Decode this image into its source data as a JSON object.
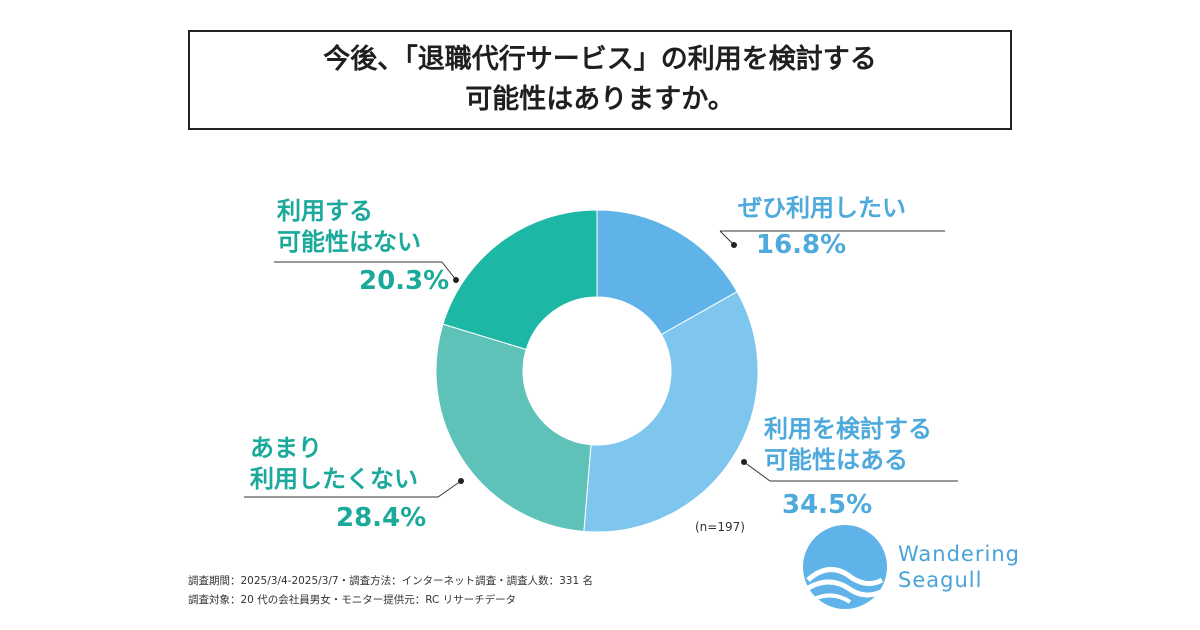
{
  "title": {
    "line1": "今後、「退職代行サービス」の利用を検討する",
    "line2": "可能性はありますか。"
  },
  "chart_data": {
    "type": "pie",
    "sample_note": "(n=197)",
    "slices": [
      {
        "label_lines": [
          "ぜひ利用したい"
        ],
        "value": 16.8,
        "pct": "16.8%",
        "color": "#5fb3e8"
      },
      {
        "label_lines": [
          "利用を検討する",
          "可能性はある"
        ],
        "value": 34.5,
        "pct": "34.5%",
        "color": "#7fc6ee"
      },
      {
        "label_lines": [
          "あまり",
          "利用したくない"
        ],
        "value": 28.4,
        "pct": "28.4%",
        "color": "#5ec2b9"
      },
      {
        "label_lines": [
          "利用する",
          "可能性はない"
        ],
        "value": 20.3,
        "pct": "20.3%",
        "color": "#1db7a5"
      }
    ]
  },
  "footer": {
    "line1": "調査期間：2025/3/4-2025/3/7・調査方法：インターネット調査・調査人数：331 名",
    "line2": "調査対象：20 代の会社員男女・モニター提供元：RC リサーチデータ"
  },
  "logo": {
    "line1": "Wandering",
    "line2": "Seagull"
  }
}
